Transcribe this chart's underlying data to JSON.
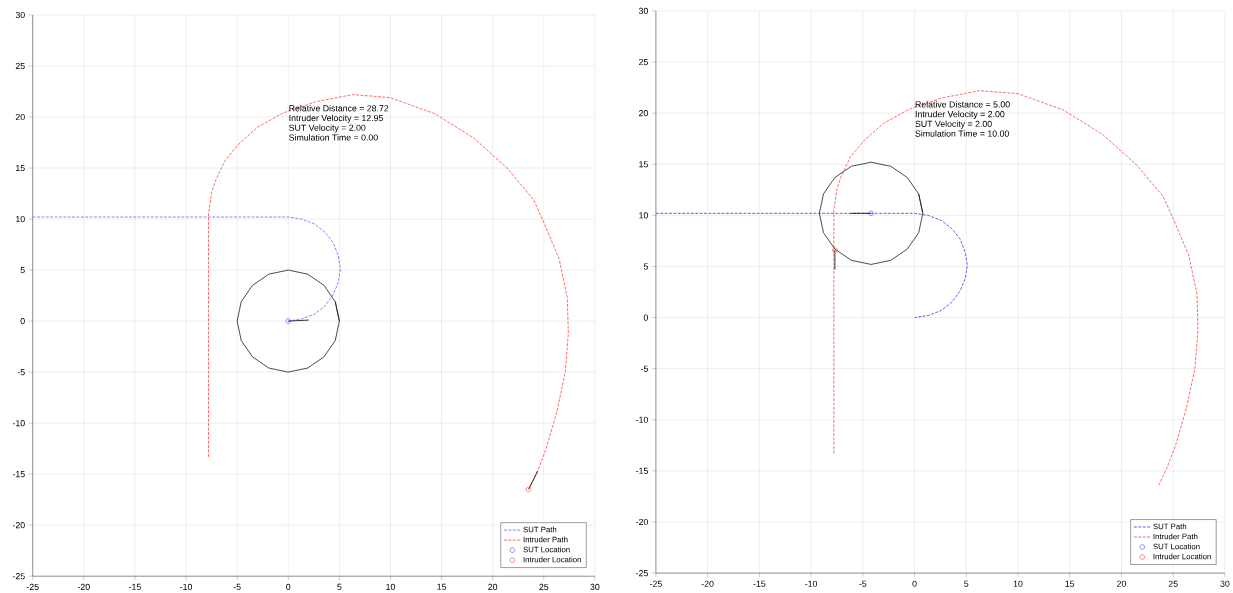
{
  "chart_data": [
    {
      "type": "line",
      "xlim": [
        -25,
        30
      ],
      "ylim": [
        -25,
        30
      ],
      "xticks": [
        -25,
        -20,
        -15,
        -10,
        -5,
        0,
        5,
        10,
        15,
        20,
        25,
        30
      ],
      "yticks": [
        -25,
        -20,
        -15,
        -10,
        -5,
        0,
        5,
        10,
        15,
        20,
        25,
        30
      ],
      "grid": true,
      "legend": "bottom right",
      "annotations": [
        "Relative Distance = 28.72",
        "Intruder Velocity = 12.95",
        "SUT Velocity = 2.00",
        "Simulation Time = 0.00"
      ],
      "series": [
        {
          "name": "SUT Path",
          "line_style": "dashed",
          "marker": "none",
          "color": "#6060ff",
          "x": [
            -25,
            0,
            1.3,
            2.6,
            3.6,
            4.4,
            4.9,
            5.1,
            4.9,
            4.4,
            3.6,
            2.6,
            1.3,
            0
          ],
          "values": [
            10.2,
            10.2,
            10,
            9.5,
            8.7,
            7.7,
            6.4,
            5.1,
            3.8,
            2.6,
            1.5,
            0.7,
            0.2,
            0
          ]
        },
        {
          "name": "Intruder Path",
          "line_style": "dashed",
          "marker": "none",
          "color": "#ff4040",
          "x": [
            -7.8,
            -7.8,
            -7.5,
            -7.1,
            -6.2,
            -4.9,
            -3,
            -0.5,
            2.7,
            6.3,
            10,
            14.4,
            18.2,
            21.4,
            24,
            24.9,
            26.5,
            27.3,
            27.4,
            27.1,
            26.3,
            25.2,
            24.4,
            23.6
          ],
          "values": [
            -13.3,
            10.5,
            12.6,
            13.8,
            15.7,
            17.3,
            19,
            20.4,
            21.5,
            22.2,
            21.9,
            20.3,
            17.9,
            15,
            11.9,
            9.9,
            6.1,
            2.3,
            -1.2,
            -5,
            -8.8,
            -12.6,
            -14.7,
            -16.4
          ]
        },
        {
          "name": "SUT Location",
          "type": "scatter",
          "marker": "circle",
          "color": "#4040ff",
          "x": [
            0
          ],
          "values": [
            0
          ]
        },
        {
          "name": "Intruder Location",
          "type": "scatter",
          "marker": "circle",
          "color": "#ff3030",
          "x": [
            23.5
          ],
          "values": [
            -16.5
          ]
        },
        {
          "line_style": "solid",
          "marker": "none",
          "color": "#1a1a1a",
          "x": [
            5,
            4.6,
            3.5,
            1.9,
            0,
            -1.9,
            -3.5,
            -4.6,
            -5,
            -4.6,
            -3.5,
            -1.9,
            0,
            1.9,
            3.5,
            4.6,
            5,
            4.6
          ],
          "values": [
            0,
            1.9,
            3.5,
            4.6,
            5,
            4.6,
            3.5,
            1.9,
            0,
            -1.9,
            -3.5,
            -4.6,
            -5,
            -4.6,
            -3.5,
            -1.9,
            0,
            1.9
          ]
        },
        {
          "line_style": "solid",
          "marker": "none",
          "color": "#000000",
          "x": [
            0,
            2,
            null,
            23.5,
            24.4
          ],
          "values": [
            0,
            0.1,
            null,
            -16.5,
            -14.7
          ]
        }
      ]
    },
    {
      "type": "line",
      "xlim": [
        -25,
        30
      ],
      "ylim": [
        -25,
        30
      ],
      "xticks": [
        -25,
        -20,
        -15,
        -10,
        -5,
        0,
        5,
        10,
        15,
        20,
        25,
        30
      ],
      "yticks": [
        -25,
        -20,
        -15,
        -10,
        -5,
        0,
        5,
        10,
        15,
        20,
        25,
        30
      ],
      "grid": true,
      "legend": "bottom right",
      "annotations": [
        "Relative Distance = 5.00",
        "Intruder Velocity = 2.00",
        "SUT Velocity = 2.00",
        "Simulation Time = 10.00"
      ],
      "series": [
        {
          "name": "SUT Path",
          "line_style": "dashed",
          "marker": "none",
          "color": "#3030ff",
          "x": [
            -25,
            0,
            1.3,
            2.6,
            3.6,
            4.4,
            4.9,
            5.1,
            4.9,
            4.4,
            3.6,
            2.6,
            1.3,
            0
          ],
          "values": [
            10.2,
            10.2,
            10,
            9.5,
            8.7,
            7.7,
            6.4,
            5.1,
            3.8,
            2.6,
            1.5,
            0.7,
            0.2,
            0
          ]
        },
        {
          "name": "Intruder Path",
          "line_style": "dashed",
          "marker": "none",
          "color": "#ff4040",
          "x": [
            -7.8,
            -7.8,
            -7.5,
            -7.1,
            -6.2,
            -4.9,
            -3,
            -0.5,
            2.7,
            6.3,
            10,
            14.4,
            18.2,
            21.4,
            24,
            24.9,
            26.5,
            27.3,
            27.4,
            27.1,
            26.3,
            25.2,
            24.4,
            23.6
          ],
          "values": [
            -13.3,
            10.5,
            12.6,
            13.8,
            15.7,
            17.3,
            19,
            20.4,
            21.5,
            22.2,
            21.9,
            20.3,
            17.9,
            15,
            11.9,
            9.9,
            6.1,
            2.3,
            -1.2,
            -5,
            -8.8,
            -12.6,
            -14.7,
            -16.4
          ]
        },
        {
          "name": "SUT Location",
          "type": "scatter",
          "marker": "circle",
          "color": "#4040ff",
          "x": [
            -4.2
          ],
          "values": [
            10.2
          ]
        },
        {
          "name": "Intruder Location",
          "type": "scatter",
          "marker": "circle",
          "color": "#ff3030",
          "x": [
            -7.7
          ],
          "values": [
            6.6
          ]
        },
        {
          "line_style": "solid",
          "marker": "none",
          "color": "#1a1a1a",
          "x": [
            0.8,
            0.4,
            -0.7,
            -2.3,
            -4.2,
            -6.1,
            -7.7,
            -8.8,
            -9.2,
            -8.8,
            -7.7,
            -6.1,
            -4.2,
            -2.3,
            -0.7,
            0.4,
            0.8,
            0.4
          ],
          "values": [
            10.2,
            12.1,
            13.7,
            14.8,
            15.2,
            14.8,
            13.7,
            12.1,
            10.2,
            8.3,
            6.7,
            5.6,
            5.2,
            5.6,
            6.7,
            8.3,
            10.2,
            12.1
          ]
        },
        {
          "line_style": "solid",
          "marker": "none",
          "color": "#000000",
          "x": [
            -4.2,
            -6.2,
            null,
            -7.7,
            -7.7
          ],
          "values": [
            10.2,
            10.2,
            null,
            6.6,
            4.7
          ]
        }
      ]
    }
  ]
}
